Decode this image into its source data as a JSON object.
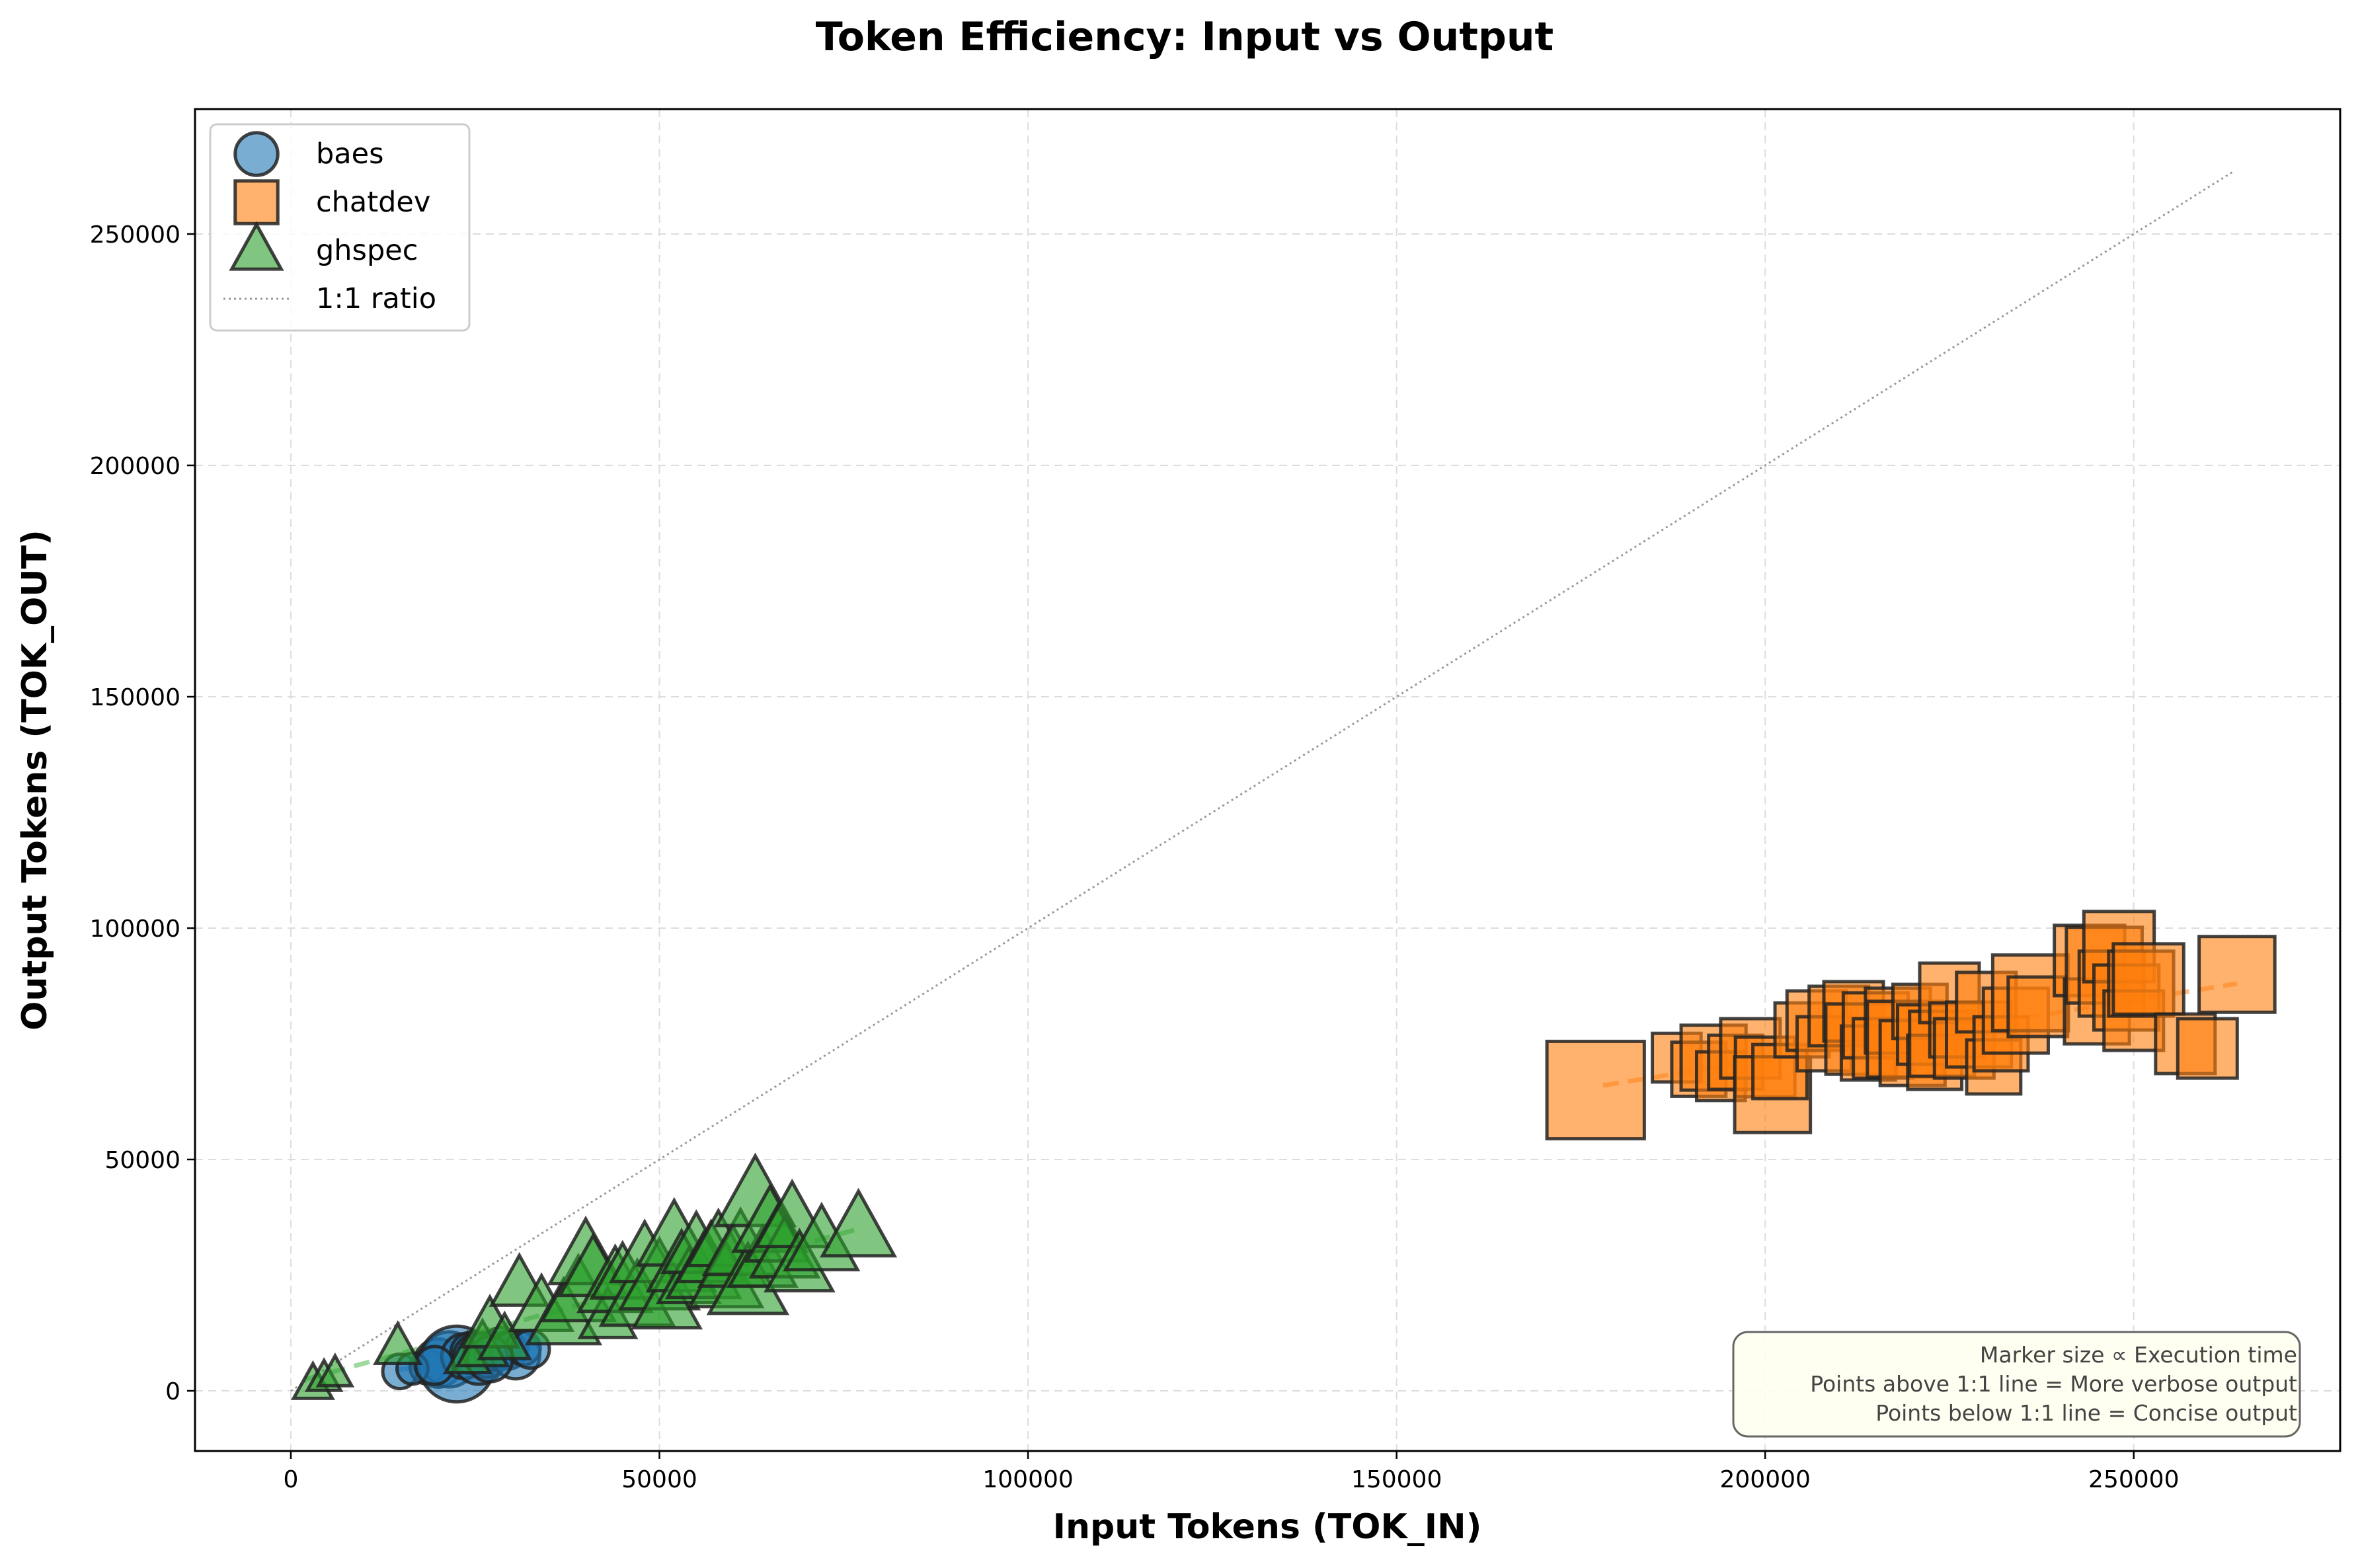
{
  "chart_data": {
    "type": "scatter",
    "title": "Token Efficiency: Input vs Output",
    "xlabel": "Input Tokens (TOK_IN)",
    "ylabel": "Output Tokens (TOK_OUT)",
    "xlim": [
      -13000,
      278000
    ],
    "ylim": [
      -13000,
      277000
    ],
    "xticks": [
      0,
      50000,
      100000,
      150000,
      200000,
      250000
    ],
    "yticks": [
      0,
      50000,
      100000,
      150000,
      200000,
      250000
    ],
    "grid": true,
    "legend_position": "top-left",
    "reference_line": {
      "label": "1:1 ratio",
      "from": [
        0,
        0
      ],
      "to": [
        263500,
        263500
      ],
      "color": "#999999"
    },
    "series": [
      {
        "name": "baes",
        "marker": "circle",
        "color": "#1f77b4",
        "trend_color": "#6fa8dc",
        "trend": [
          [
            14500,
            4500
          ],
          [
            32500,
            9500
          ]
        ],
        "points": [
          [
            14800,
            4200,
            1.0
          ],
          [
            18500,
            5200,
            1.0
          ],
          [
            20000,
            6000,
            1.4
          ],
          [
            21500,
            6800,
            1.6
          ],
          [
            22500,
            5800,
            2.2
          ],
          [
            23500,
            7500,
            1.3
          ],
          [
            24500,
            8200,
            1.2
          ],
          [
            25500,
            7000,
            1.5
          ],
          [
            26500,
            7800,
            1.3
          ],
          [
            27500,
            8500,
            1.1
          ],
          [
            28500,
            9200,
            1.2
          ],
          [
            29500,
            8800,
            1.1
          ],
          [
            30500,
            7800,
            1.4
          ],
          [
            31500,
            9300,
            1.0
          ],
          [
            32500,
            9000,
            1.1
          ],
          [
            16500,
            4800,
            0.9
          ],
          [
            19500,
            5500,
            1.1
          ],
          [
            27000,
            6800,
            1.3
          ]
        ]
      },
      {
        "name": "chatdev",
        "marker": "square",
        "color": "#ff7f0e",
        "trend_color": "#ffb477",
        "trend": [
          [
            178000,
            66000
          ],
          [
            264000,
            88000
          ]
        ],
        "points": [
          [
            177000,
            65000,
            1.8
          ],
          [
            188000,
            72000,
            0.9
          ],
          [
            191000,
            69500,
            1.0
          ],
          [
            193000,
            72000,
            1.2
          ],
          [
            194000,
            68000,
            0.9
          ],
          [
            196000,
            71000,
            1.0
          ],
          [
            198000,
            74000,
            1.1
          ],
          [
            200000,
            70000,
            1.1
          ],
          [
            201000,
            64000,
            1.4
          ],
          [
            202000,
            69000,
            1.0
          ],
          [
            205000,
            78000,
            1.0
          ],
          [
            207000,
            80000,
            1.1
          ],
          [
            208000,
            75000,
            1.0
          ],
          [
            210000,
            81000,
            1.1
          ],
          [
            212000,
            82000,
            1.1
          ],
          [
            213000,
            76000,
            1.3
          ],
          [
            214000,
            73000,
            1.0
          ],
          [
            215000,
            79000,
            1.2
          ],
          [
            216000,
            74000,
            1.1
          ],
          [
            218000,
            80000,
            1.2
          ],
          [
            219000,
            76000,
            1.4
          ],
          [
            220000,
            73000,
            1.2
          ],
          [
            221000,
            82000,
            1.0
          ],
          [
            222000,
            77000,
            1.1
          ],
          [
            223000,
            71000,
            1.0
          ],
          [
            224000,
            75000,
            1.2
          ],
          [
            225000,
            86000,
            1.1
          ],
          [
            226000,
            78000,
            1.0
          ],
          [
            227000,
            74000,
            1.1
          ],
          [
            229000,
            77000,
            1.2
          ],
          [
            230000,
            84000,
            1.1
          ],
          [
            231000,
            70000,
            1.0
          ],
          [
            232000,
            75000,
            1.0
          ],
          [
            234000,
            80000,
            1.2
          ],
          [
            236000,
            86000,
            1.4
          ],
          [
            237000,
            83000,
            1.1
          ],
          [
            244000,
            93000,
            1.3
          ],
          [
            245000,
            82000,
            1.2
          ],
          [
            246000,
            92000,
            1.4
          ],
          [
            247000,
            88000,
            1.2
          ],
          [
            248000,
            96000,
            1.3
          ],
          [
            249000,
            85000,
            1.2
          ],
          [
            250000,
            80000,
            1.1
          ],
          [
            251000,
            88000,
            1.2
          ],
          [
            252000,
            89000,
            1.3
          ],
          [
            257000,
            75000,
            1.1
          ],
          [
            260000,
            74000,
            1.1
          ],
          [
            264000,
            90000,
            1.4
          ]
        ]
      },
      {
        "name": "ghspec",
        "marker": "triangle",
        "color": "#2ca02c",
        "trend_color": "#8fd18f",
        "trend": [
          [
            2000,
            2500
          ],
          [
            77000,
            35000
          ]
        ],
        "points": [
          [
            3000,
            1500,
            0.7
          ],
          [
            4500,
            2800,
            0.6
          ],
          [
            6000,
            3800,
            0.6
          ],
          [
            14500,
            9500,
            0.8
          ],
          [
            24000,
            7500,
            0.8
          ],
          [
            26000,
            9500,
            0.9
          ],
          [
            27000,
            14000,
            1.0
          ],
          [
            29000,
            11000,
            0.9
          ],
          [
            31000,
            23000,
            1.0
          ],
          [
            34000,
            18000,
            1.1
          ],
          [
            37000,
            16000,
            1.3
          ],
          [
            39000,
            21000,
            1.3
          ],
          [
            40000,
            29000,
            1.3
          ],
          [
            41000,
            26000,
            1.2
          ],
          [
            43000,
            16000,
            1.0
          ],
          [
            44000,
            23000,
            1.3
          ],
          [
            45000,
            25000,
            1.1
          ],
          [
            47000,
            20000,
            1.3
          ],
          [
            48000,
            29000,
            1.2
          ],
          [
            50000,
            24000,
            1.4
          ],
          [
            51000,
            19000,
            1.2
          ],
          [
            52000,
            33000,
            1.3
          ],
          [
            53000,
            27000,
            1.2
          ],
          [
            54000,
            24000,
            1.1
          ],
          [
            55000,
            31000,
            1.2
          ],
          [
            56000,
            26000,
            1.3
          ],
          [
            57000,
            29000,
            1.2
          ],
          [
            58000,
            32000,
            1.1
          ],
          [
            59000,
            24000,
            1.3
          ],
          [
            60000,
            28000,
            1.2
          ],
          [
            61000,
            31000,
            1.3
          ],
          [
            62000,
            23000,
            1.4
          ],
          [
            63000,
            42000,
            1.4
          ],
          [
            64000,
            28000,
            1.2
          ],
          [
            65000,
            36000,
            1.3
          ],
          [
            66000,
            33000,
            1.1
          ],
          [
            67000,
            30000,
            1.2
          ],
          [
            68000,
            37000,
            1.3
          ],
          [
            69000,
            27000,
            1.2
          ],
          [
            72000,
            32000,
            1.3
          ],
          [
            77000,
            35000,
            1.3
          ]
        ]
      }
    ],
    "annotation": [
      "Marker size ∝ Execution time",
      "Points above 1:1 line = More verbose output",
      "Points below 1:1 line = Concise output"
    ]
  }
}
